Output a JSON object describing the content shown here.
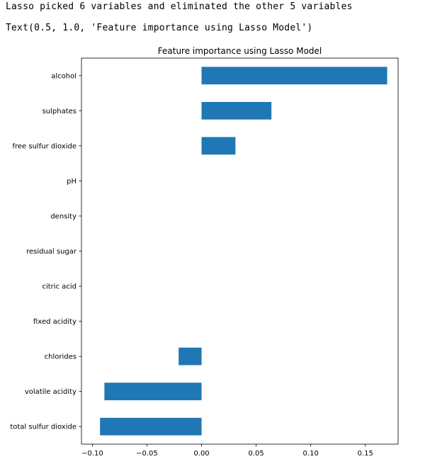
{
  "output": {
    "line1": "Lasso picked 6 variables and eliminated the other 5 variables",
    "line2": "Text(0.5, 1.0, 'Feature importance using Lasso Model')"
  },
  "chart_data": {
    "type": "bar",
    "orientation": "horizontal",
    "title": "Feature importance using Lasso Model",
    "xlabel": "",
    "ylabel": "",
    "xlim": [
      -0.11,
      0.18
    ],
    "grid": false,
    "bar_color": "#1f77b4",
    "categories": [
      "alcohol",
      "sulphates",
      "free sulfur dioxide",
      "pH",
      "density",
      "residual sugar",
      "citric acid",
      "fixed acidity",
      "chlorides",
      "volatile acidity",
      "total sulfur dioxide"
    ],
    "values": [
      0.17,
      0.064,
      0.031,
      0.0,
      0.0,
      0.0,
      0.0,
      0.0,
      -0.021,
      -0.089,
      -0.093
    ],
    "x_ticks": [
      -0.1,
      -0.05,
      0.0,
      0.05,
      0.1,
      0.15
    ],
    "x_tick_labels": [
      "−0.10",
      "−0.05",
      "0.00",
      "0.05",
      "0.10",
      "0.15"
    ]
  }
}
